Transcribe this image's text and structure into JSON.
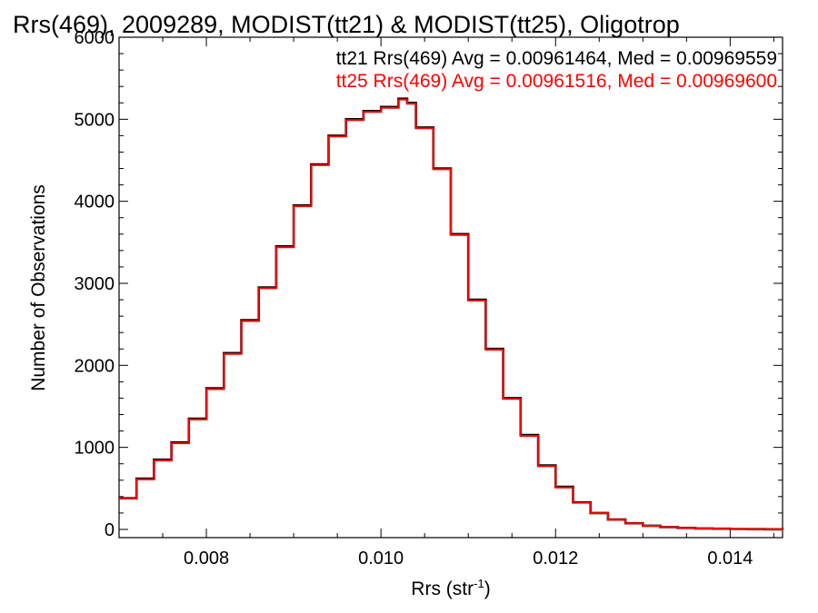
{
  "chart_data": {
    "type": "line",
    "step": true,
    "title": "Rrs(469), 2009289, MODIST(tt21) & MODIST(tt25), Oligotrop",
    "xlabel": "Rrs (str",
    "xlabel_sup": "-1",
    "xlabel_end": ")",
    "ylabel": "Number of Observations",
    "xlim": [
      0.007,
      0.0146
    ],
    "ylim": [
      -100,
      6000
    ],
    "xticks": [
      0.008,
      0.01,
      0.012,
      0.014
    ],
    "xtick_labels": [
      "0.008",
      "0.010",
      "0.012",
      "0.014"
    ],
    "yticks": [
      0,
      1000,
      2000,
      3000,
      4000,
      5000,
      6000
    ],
    "ytick_labels": [
      "0",
      "1000",
      "2000",
      "3000",
      "4000",
      "5000",
      "6000"
    ],
    "grid": false,
    "annotations": [
      {
        "text": "tt21 Rrs(469) Avg = 0.00961464, Med = 0.00969559",
        "color": "#000000"
      },
      {
        "text": "tt25 Rrs(469) Avg = 0.00961516, Med = 0.00969600",
        "color": "#ff0000"
      }
    ],
    "series": [
      {
        "color": "#000000",
        "x": [
          0.007,
          0.0072,
          0.0074,
          0.0076,
          0.0078,
          0.008,
          0.0082,
          0.0084,
          0.0086,
          0.0088,
          0.009,
          0.0092,
          0.0094,
          0.0096,
          0.0098,
          0.01,
          0.0102,
          0.0103,
          0.0104,
          0.0106,
          0.0108,
          0.011,
          0.0112,
          0.0114,
          0.0116,
          0.0118,
          0.012,
          0.0122,
          0.0124,
          0.0126,
          0.0128,
          0.013,
          0.0132,
          0.0134,
          0.0136,
          0.0138,
          0.014,
          0.0142,
          0.0144,
          0.0146
        ],
        "y": [
          380,
          620,
          850,
          1060,
          1350,
          1720,
          2150,
          2550,
          2950,
          3450,
          3950,
          4450,
          4800,
          5000,
          5100,
          5150,
          5250,
          5200,
          4900,
          4400,
          3600,
          2800,
          2200,
          1600,
          1150,
          780,
          520,
          330,
          200,
          120,
          75,
          45,
          28,
          18,
          12,
          8,
          5,
          3,
          2,
          1
        ]
      },
      {
        "color": "#ff0000",
        "x": [
          0.007,
          0.0072,
          0.0074,
          0.0076,
          0.0078,
          0.008,
          0.0082,
          0.0084,
          0.0086,
          0.0088,
          0.009,
          0.0092,
          0.0094,
          0.0096,
          0.0098,
          0.01,
          0.0102,
          0.0103,
          0.0104,
          0.0106,
          0.0108,
          0.011,
          0.0112,
          0.0114,
          0.0116,
          0.0118,
          0.012,
          0.0122,
          0.0124,
          0.0126,
          0.0128,
          0.013,
          0.0132,
          0.0134,
          0.0136,
          0.0138,
          0.014,
          0.0142,
          0.0144,
          0.0146
        ],
        "y": [
          380,
          610,
          840,
          1050,
          1340,
          1710,
          2140,
          2540,
          2940,
          3440,
          3940,
          4440,
          4790,
          4990,
          5090,
          5140,
          5240,
          5190,
          4890,
          4390,
          3590,
          2790,
          2190,
          1590,
          1140,
          770,
          510,
          325,
          198,
          118,
          74,
          44,
          27,
          17,
          11,
          7,
          5,
          3,
          2,
          1
        ]
      }
    ]
  }
}
